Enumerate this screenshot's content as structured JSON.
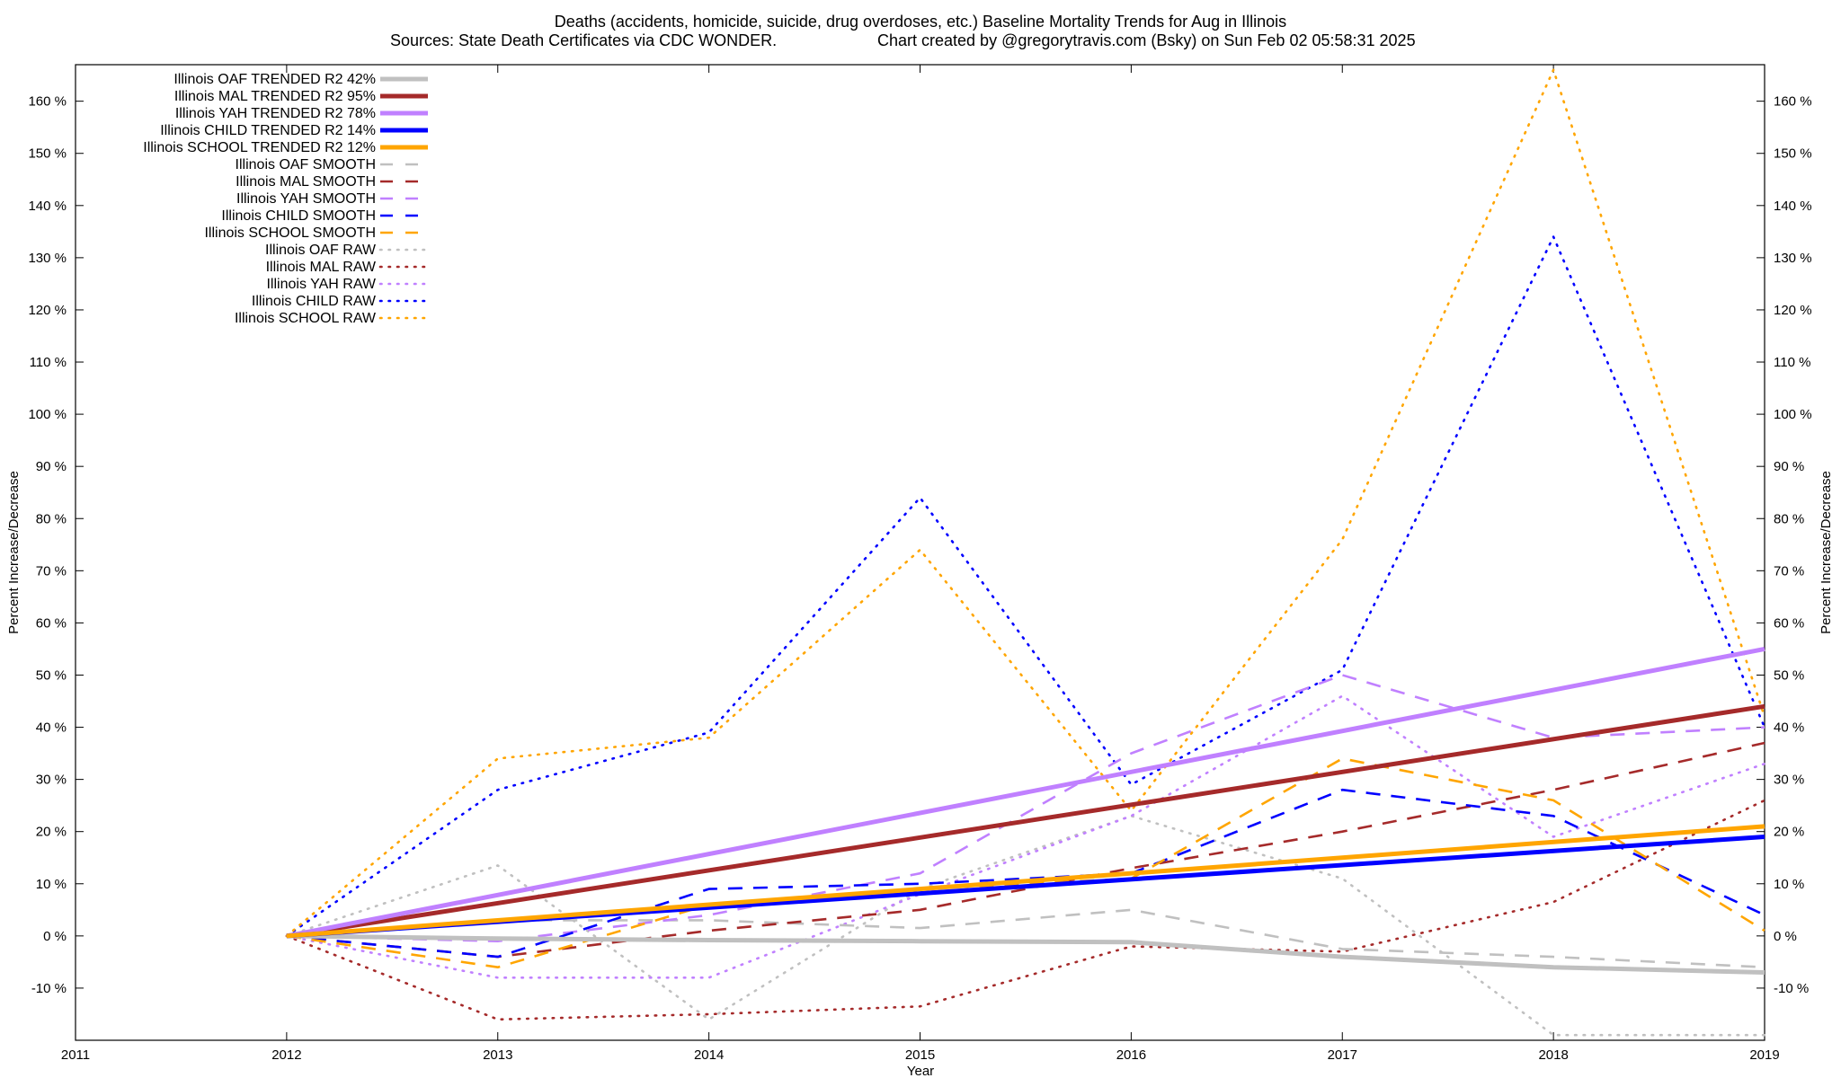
{
  "chart_data": {
    "type": "line",
    "title_line1": "Deaths (accidents, homicide, suicide, drug overdoses, etc.)  Baseline Mortality Trends for Aug in Illinois",
    "title_line2_left": "Sources: State Death Certificates via CDC WONDER.",
    "title_line2_right": "Chart created by @gregorytravis.com (Bsky) on Sun Feb 02 05:58:31 2025",
    "xlabel": "Year",
    "ylabel": "Percent Increase/Decrease",
    "y2label": "Percent Increase/Decrease",
    "xlim": [
      2011,
      2019
    ],
    "ylim": [
      -20,
      167
    ],
    "x_ticks": [
      2011,
      2012,
      2013,
      2014,
      2015,
      2016,
      2017,
      2018,
      2019
    ],
    "y_ticks": [
      -10,
      0,
      10,
      20,
      30,
      40,
      50,
      60,
      70,
      80,
      90,
      100,
      110,
      120,
      130,
      140,
      150,
      160
    ],
    "y_tick_suffix": " %",
    "grid": false,
    "legend_position": "top-left",
    "series": [
      {
        "name": "Illinois OAF TRENDED R2  42%",
        "style": "solid",
        "color": "#c0c0c0",
        "x": [
          2012,
          2013,
          2014,
          2015,
          2016,
          2017,
          2018,
          2019
        ],
        "values": [
          0,
          -0.5,
          -0.8,
          -1,
          -1.2,
          -4,
          -6,
          -7
        ]
      },
      {
        "name": "Illinois MAL TRENDED R2  95%",
        "style": "solid",
        "color": "#a52a2a",
        "x": [
          2012,
          2019
        ],
        "values": [
          0,
          44
        ]
      },
      {
        "name": "Illinois YAH TRENDED R2  78%",
        "style": "solid",
        "color": "#c080ff",
        "x": [
          2012,
          2019
        ],
        "values": [
          0,
          55
        ]
      },
      {
        "name": "Illinois CHILD TRENDED R2  14%",
        "style": "solid",
        "color": "#0000ff",
        "x": [
          2012,
          2019
        ],
        "values": [
          0,
          19
        ]
      },
      {
        "name": "Illinois SCHOOL TRENDED R2  12%",
        "style": "solid",
        "color": "#ffa500",
        "x": [
          2012,
          2019
        ],
        "values": [
          0,
          21
        ]
      },
      {
        "name": "Illinois OAF SMOOTH",
        "style": "dashed",
        "color": "#c0c0c0",
        "x": [
          2012,
          2013,
          2014,
          2015,
          2016,
          2017,
          2018,
          2019
        ],
        "values": [
          0,
          3,
          3,
          1.5,
          5,
          -2.5,
          -4,
          -6
        ]
      },
      {
        "name": "Illinois MAL SMOOTH",
        "style": "dashed",
        "color": "#a52a2a",
        "x": [
          2012,
          2013,
          2014,
          2015,
          2016,
          2017,
          2018,
          2019
        ],
        "values": [
          0,
          -4,
          1,
          5,
          13,
          20,
          28,
          37
        ]
      },
      {
        "name": "Illinois YAH SMOOTH",
        "style": "dashed",
        "color": "#c080ff",
        "x": [
          2012,
          2013,
          2014,
          2015,
          2016,
          2017,
          2018,
          2019
        ],
        "values": [
          0,
          -1,
          4,
          12,
          35,
          50,
          38,
          40
        ]
      },
      {
        "name": "Illinois CHILD SMOOTH",
        "style": "dashed",
        "color": "#0000ff",
        "x": [
          2012,
          2013,
          2014,
          2015,
          2016,
          2017,
          2018,
          2019
        ],
        "values": [
          0,
          -4,
          9,
          10,
          12,
          28,
          23,
          4
        ]
      },
      {
        "name": "Illinois SCHOOL SMOOTH",
        "style": "dashed",
        "color": "#ffa500",
        "x": [
          2012,
          2013,
          2014,
          2015,
          2016,
          2017,
          2018,
          2019
        ],
        "values": [
          0,
          -6,
          6,
          9,
          11,
          34,
          26,
          1
        ]
      },
      {
        "name": "Illinois OAF RAW",
        "style": "dotted",
        "color": "#c0c0c0",
        "x": [
          2012,
          2013,
          2014,
          2015,
          2016,
          2017,
          2018,
          2019
        ],
        "values": [
          0,
          13.5,
          -16,
          9,
          23,
          11,
          -19,
          -19
        ]
      },
      {
        "name": "Illinois MAL RAW",
        "style": "dotted",
        "color": "#a52a2a",
        "x": [
          2012,
          2013,
          2014,
          2015,
          2016,
          2017,
          2018,
          2019
        ],
        "values": [
          0,
          -16,
          -15,
          -13.5,
          -2,
          -3,
          6.5,
          26
        ]
      },
      {
        "name": "Illinois YAH RAW",
        "style": "dotted",
        "color": "#c080ff",
        "x": [
          2012,
          2013,
          2014,
          2015,
          2016,
          2017,
          2018,
          2019
        ],
        "values": [
          0,
          -8,
          -8,
          8,
          23,
          46,
          19,
          33
        ]
      },
      {
        "name": "Illinois CHILD RAW",
        "style": "dotted",
        "color": "#0000ff",
        "x": [
          2012,
          2013,
          2014,
          2015,
          2016,
          2017,
          2018,
          2019
        ],
        "values": [
          0,
          28,
          39,
          84,
          29,
          51,
          134,
          40
        ]
      },
      {
        "name": "Illinois SCHOOL RAW",
        "style": "dotted",
        "color": "#ffa500",
        "x": [
          2012,
          2013,
          2014,
          2015,
          2016,
          2017,
          2018,
          2019
        ],
        "values": [
          0,
          34,
          38,
          74,
          24,
          76,
          166,
          42
        ]
      }
    ]
  }
}
